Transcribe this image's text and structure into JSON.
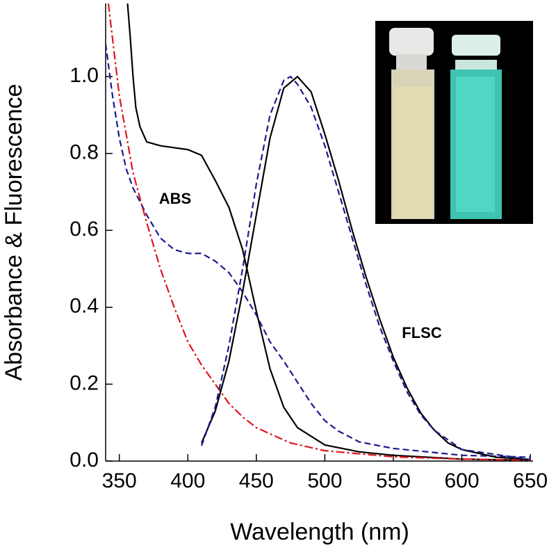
{
  "chart_data": {
    "type": "line",
    "xlabel": "Wavelength (nm)",
    "ylabel": "Absorbance & Fluorescence",
    "annotations": [
      "ABS",
      "FLSC"
    ],
    "xlim": [
      340,
      652
    ],
    "ylim": [
      0,
      1.19
    ],
    "xticks": [
      350,
      400,
      450,
      500,
      550,
      600,
      650
    ],
    "yticks": [
      {
        "value": 0,
        "label": "0.0"
      },
      0.2,
      0.4,
      0.6,
      0.8,
      {
        "value": 1,
        "label": "1.0"
      }
    ],
    "series": [
      {
        "color": "#000000",
        "dash": "solid",
        "x": [
          356,
          358,
          360,
          362,
          365,
          370,
          380,
          400,
          410,
          420,
          430,
          440,
          450,
          460,
          470,
          480,
          500,
          525,
          550,
          600,
          650
        ],
        "values": [
          1.19,
          1.1,
          1.0,
          0.92,
          0.87,
          0.83,
          0.82,
          0.81,
          0.795,
          0.73,
          0.66,
          0.55,
          0.39,
          0.24,
          0.14,
          0.087,
          0.042,
          0.024,
          0.015,
          0.005,
          0.002
        ]
      },
      {
        "color": "#1a1a8c",
        "dash": "dashed",
        "x": [
          340,
          345,
          350,
          355,
          360,
          370,
          380,
          390,
          400,
          410,
          420,
          430,
          440,
          450,
          460,
          470,
          480,
          490,
          500,
          510,
          525,
          550,
          600,
          650
        ],
        "values": [
          1.085,
          0.95,
          0.84,
          0.76,
          0.71,
          0.64,
          0.58,
          0.55,
          0.54,
          0.54,
          0.52,
          0.49,
          0.44,
          0.38,
          0.31,
          0.26,
          0.205,
          0.15,
          0.105,
          0.078,
          0.05,
          0.033,
          0.015,
          0.01
        ]
      },
      {
        "color": "#e0141e",
        "dash": "dashdot",
        "x": [
          342,
          350,
          360,
          370,
          380,
          390,
          400,
          410,
          420,
          430,
          440,
          450,
          475,
          500,
          550,
          600,
          650
        ],
        "values": [
          1.19,
          0.95,
          0.75,
          0.62,
          0.5,
          0.4,
          0.31,
          0.25,
          0.2,
          0.15,
          0.115,
          0.087,
          0.047,
          0.027,
          0.011,
          0.005,
          0.002
        ]
      },
      {
        "color": "#000000",
        "dash": "solid",
        "x": [
          410,
          420,
          430,
          440,
          450,
          460,
          470,
          480,
          490,
          500,
          510,
          520,
          530,
          540,
          550,
          560,
          570,
          580,
          590,
          600,
          625,
          650
        ],
        "values": [
          0.047,
          0.13,
          0.26,
          0.44,
          0.64,
          0.84,
          0.97,
          1.0,
          0.96,
          0.85,
          0.73,
          0.6,
          0.48,
          0.37,
          0.27,
          0.19,
          0.125,
          0.08,
          0.047,
          0.03,
          0.01,
          0.004
        ]
      },
      {
        "color": "#1a1a8c",
        "dash": "dashed",
        "x": [
          410,
          420,
          430,
          440,
          450,
          460,
          470,
          475,
          480,
          490,
          500,
          510,
          520,
          530,
          540,
          550,
          560,
          570,
          580,
          600,
          650
        ],
        "values": [
          0.04,
          0.14,
          0.3,
          0.5,
          0.72,
          0.9,
          0.99,
          1.0,
          0.98,
          0.92,
          0.82,
          0.7,
          0.58,
          0.46,
          0.35,
          0.26,
          0.18,
          0.12,
          0.08,
          0.03,
          0.004
        ]
      }
    ]
  }
}
